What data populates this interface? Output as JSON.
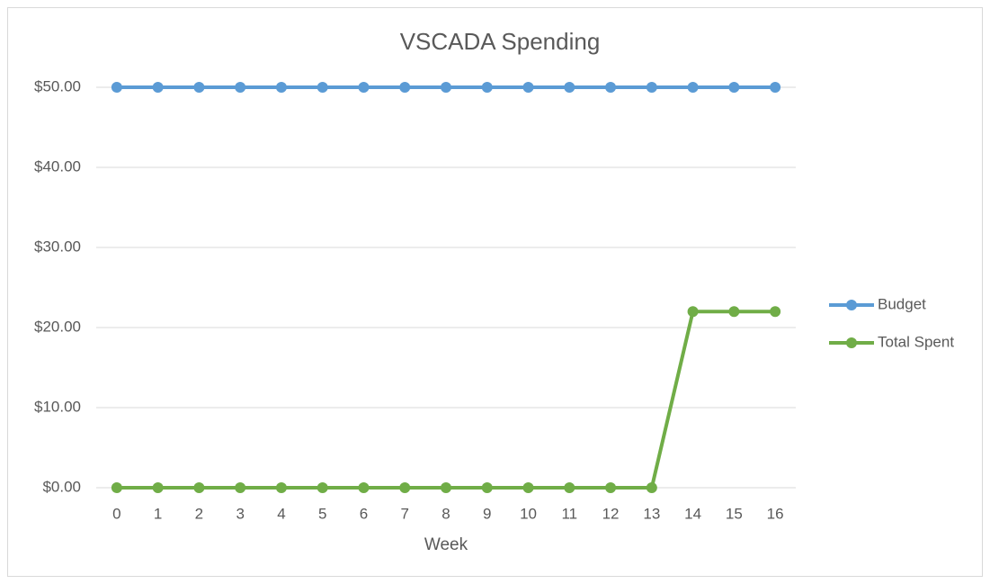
{
  "chart_data": {
    "type": "line",
    "title": "VSCADA Spending",
    "x_label": "Week",
    "categories": [
      "0",
      "1",
      "2",
      "3",
      "4",
      "5",
      "6",
      "7",
      "8",
      "9",
      "10",
      "11",
      "12",
      "13",
      "14",
      "15",
      "16"
    ],
    "series": [
      {
        "name": "Budget",
        "color": "#5b9bd5",
        "values": [
          50,
          50,
          50,
          50,
          50,
          50,
          50,
          50,
          50,
          50,
          50,
          50,
          50,
          50,
          50,
          50,
          50
        ]
      },
      {
        "name": "Total Spent",
        "color": "#70ad47",
        "values": [
          0,
          0,
          0,
          0,
          0,
          0,
          0,
          0,
          0,
          0,
          0,
          0,
          0,
          0,
          22,
          22,
          22
        ]
      }
    ],
    "ylim": [
      0,
      50
    ],
    "yticks": [
      {
        "value": 0,
        "label": "$0.00"
      },
      {
        "value": 10,
        "label": "$10.00"
      },
      {
        "value": 20,
        "label": "$20.00"
      },
      {
        "value": 30,
        "label": "$30.00"
      },
      {
        "value": 40,
        "label": "$40.00"
      },
      {
        "value": 50,
        "label": "$50.00"
      }
    ],
    "grid": true,
    "legend": "right"
  }
}
